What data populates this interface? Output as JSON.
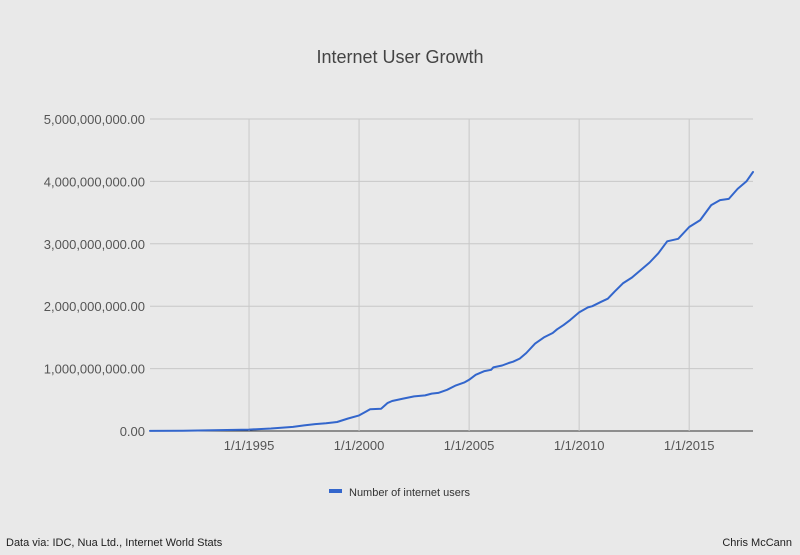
{
  "chart_data": {
    "type": "line",
    "title": "Internet User Growth",
    "xlabel": "",
    "ylabel": "",
    "x_ticks": [
      "1/1/1995",
      "1/1/2000",
      "1/1/2005",
      "1/1/2010",
      "1/1/2015"
    ],
    "x_tick_years": [
      1995,
      2000,
      2005,
      2010,
      2015
    ],
    "xlim": [
      1990.5,
      2017.9
    ],
    "y_ticks": [
      "0.00",
      "1,000,000,000.00",
      "2,000,000,000.00",
      "3,000,000,000.00",
      "4,000,000,000.00",
      "5,000,000,000.00"
    ],
    "ylim": [
      0,
      5000000000
    ],
    "grid": true,
    "legend_position": "bottom",
    "series": [
      {
        "name": "Number of internet users",
        "color": "#3366cc",
        "x": [
          1990.5,
          1992,
          1993,
          1994,
          1995,
          1996,
          1997,
          1997.5,
          1998,
          1998.5,
          1999,
          1999.5,
          2000,
          2000.3,
          2000.5,
          2001,
          2001.3,
          2001.5,
          2002,
          2002.5,
          2003,
          2003.3,
          2003.6,
          2004,
          2004.4,
          2004.8,
          2005,
          2005.3,
          2005.7,
          2006,
          2006.1,
          2006.5,
          2006.8,
          2007,
          2007.3,
          2007.6,
          2008,
          2008.4,
          2008.8,
          2009,
          2009.3,
          2009.6,
          2010,
          2010.4,
          2010.6,
          2011,
          2011.3,
          2011.6,
          2012,
          2012.4,
          2012.8,
          2013.2,
          2013.6,
          2014,
          2014.5,
          2015,
          2015.5,
          2016,
          2016.4,
          2016.8,
          2017.2,
          2017.6,
          2017.9
        ],
        "values": [
          2000000,
          4000000,
          10000000,
          16000000,
          22000000,
          40000000,
          65000000,
          90000000,
          110000000,
          125000000,
          145000000,
          200000000,
          250000000,
          310000000,
          350000000,
          355000000,
          450000000,
          480000000,
          520000000,
          555000000,
          570000000,
          600000000,
          610000000,
          660000000,
          730000000,
          780000000,
          820000000,
          900000000,
          960000000,
          980000000,
          1020000000,
          1050000000,
          1090000000,
          1110000000,
          1160000000,
          1250000000,
          1400000000,
          1500000000,
          1570000000,
          1630000000,
          1700000000,
          1780000000,
          1900000000,
          1980000000,
          2000000000,
          2070000000,
          2120000000,
          2230000000,
          2370000000,
          2460000000,
          2580000000,
          2700000000,
          2850000000,
          3040000000,
          3080000000,
          3270000000,
          3380000000,
          3620000000,
          3700000000,
          3720000000,
          3880000000,
          4000000000,
          4150000000
        ]
      }
    ]
  },
  "footer": {
    "source": "Data via: IDC, Nua Ltd., Internet World Stats",
    "author": "Chris McCann"
  }
}
